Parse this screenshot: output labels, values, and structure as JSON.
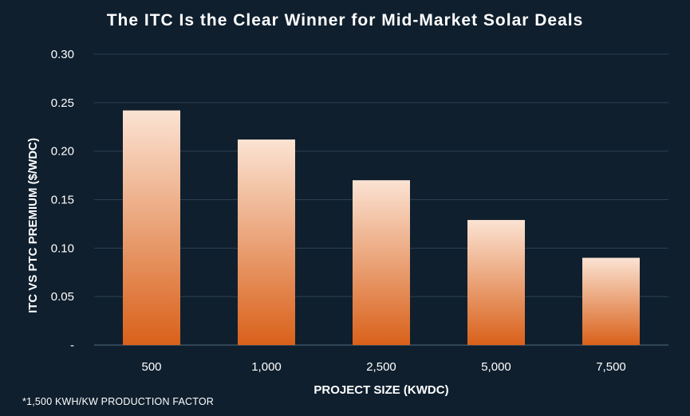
{
  "chart_data": {
    "type": "bar",
    "title": "The ITC Is the Clear Winner for Mid-Market Solar Deals",
    "xlabel": "PROJECT SIZE (KWDC)",
    "ylabel": "ITC VS PTC PREMIUM ($/WDC)",
    "categories": [
      "500",
      "1,000",
      "2,500",
      "5,000",
      "7,500"
    ],
    "values": [
      0.242,
      0.212,
      0.17,
      0.129,
      0.09
    ],
    "ylim": [
      0,
      0.3
    ],
    "yticks": [
      {
        "value": 0,
        "label": "-"
      },
      {
        "value": 0.05,
        "label": "0.05"
      },
      {
        "value": 0.1,
        "label": "0.10"
      },
      {
        "value": 0.15,
        "label": "0.15"
      },
      {
        "value": 0.2,
        "label": "0.20"
      },
      {
        "value": 0.25,
        "label": "0.25"
      },
      {
        "value": 0.3,
        "label": "0.30"
      }
    ],
    "grid": true,
    "footnote": "*1,500 KWH/KW PRODUCTION FACTOR",
    "colors": {
      "background": "#0f1f2e",
      "bar_top": "#fbe3d3",
      "bar_bottom": "#d9611a",
      "grid": "#2d4050",
      "text": "#ffffff"
    }
  }
}
